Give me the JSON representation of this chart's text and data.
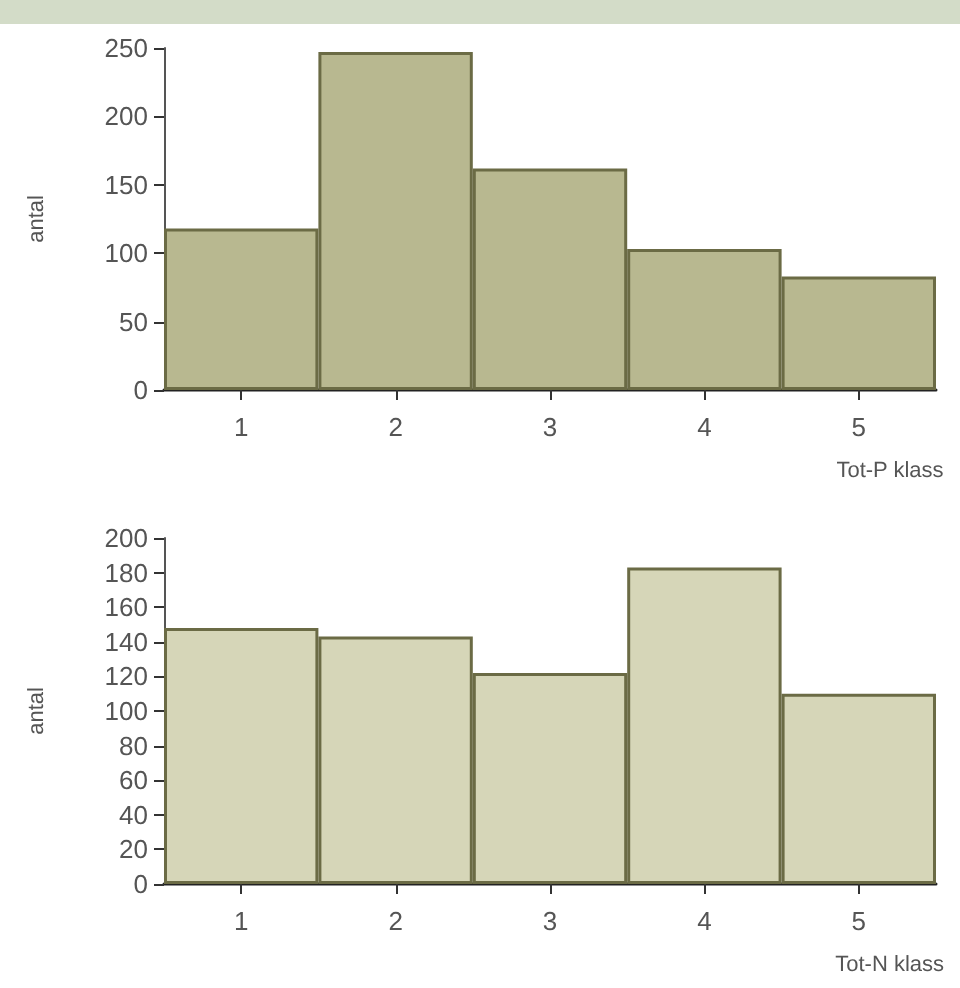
{
  "chart_data": [
    {
      "type": "bar",
      "categories": [
        "1",
        "2",
        "3",
        "4",
        "5"
      ],
      "values": [
        118,
        247,
        162,
        103,
        83
      ],
      "color": "#b8b890",
      "xlabel": "Tot-P klass",
      "ylabel": "antal",
      "ylim": [
        0,
        250
      ],
      "yticks": [
        0,
        50,
        100,
        150,
        200,
        250
      ],
      "grid": false
    },
    {
      "type": "bar",
      "categories": [
        "1",
        "2",
        "3",
        "4",
        "5"
      ],
      "values": [
        148,
        143,
        122,
        183,
        110
      ],
      "color": "#d6d6b8",
      "xlabel": "Tot-N klass",
      "ylabel": "antal",
      "ylim": [
        0,
        200
      ],
      "yticks": [
        0,
        20,
        40,
        60,
        80,
        100,
        120,
        140,
        160,
        180,
        200
      ],
      "grid": false
    }
  ]
}
